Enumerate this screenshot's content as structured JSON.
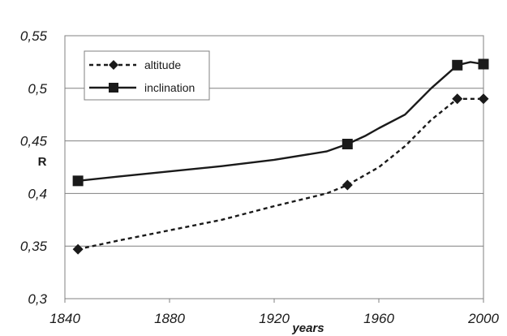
{
  "chart_data": {
    "type": "line",
    "title": "",
    "xlabel": "years",
    "ylabel": "R",
    "xlim": [
      1840,
      2000
    ],
    "ylim": [
      0.3,
      0.55
    ],
    "x_ticks": [
      1840,
      1880,
      1920,
      1960,
      2000
    ],
    "x_tick_labels": [
      "1840",
      "1880",
      "1920",
      "1960",
      "2000"
    ],
    "y_ticks": [
      0.3,
      0.35,
      0.4,
      0.45,
      0.5,
      0.55
    ],
    "y_tick_labels": [
      "0,3",
      "0,35",
      "0,4",
      "0,45",
      "0,5",
      "0,55"
    ],
    "grid": "horizontal",
    "legend_position": "top-left",
    "series": [
      {
        "name": "altitude",
        "line_style": "dashed",
        "marker": "diamond",
        "color": "#1a1a1a",
        "x": [
          1845,
          1948,
          1990,
          2000
        ],
        "y": [
          0.347,
          0.408,
          0.49,
          0.49
        ],
        "curve_x": [
          1845,
          1860,
          1880,
          1900,
          1920,
          1940,
          1948,
          1960,
          1970,
          1980,
          1990,
          2000
        ],
        "curve_y": [
          0.347,
          0.355,
          0.365,
          0.375,
          0.388,
          0.4,
          0.408,
          0.425,
          0.445,
          0.47,
          0.49,
          0.49
        ]
      },
      {
        "name": "inclination",
        "line_style": "solid",
        "marker": "square",
        "color": "#1a1a1a",
        "x": [
          1845,
          1948,
          1990,
          2000
        ],
        "y": [
          0.412,
          0.447,
          0.522,
          0.523
        ],
        "curve_x": [
          1845,
          1860,
          1880,
          1900,
          1920,
          1940,
          1948,
          1955,
          1960,
          1970,
          1980,
          1990,
          1995,
          2000
        ],
        "curve_y": [
          0.412,
          0.416,
          0.421,
          0.426,
          0.432,
          0.44,
          0.447,
          0.455,
          0.462,
          0.475,
          0.5,
          0.522,
          0.525,
          0.523
        ]
      }
    ]
  }
}
